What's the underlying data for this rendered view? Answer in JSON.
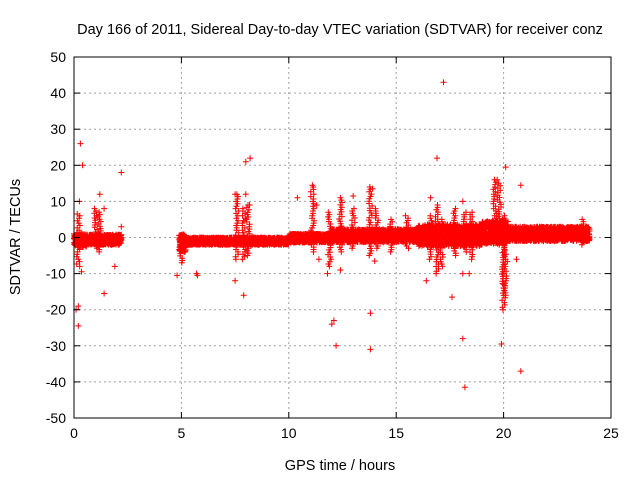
{
  "chart_data": {
    "type": "scatter",
    "title": "Day 166 of 2011, Sidereal Day-to-day VTEC variation (SDTVAR) for receiver conz",
    "xlabel": "GPS time / hours",
    "ylabel": "SDTVAR / TECUs",
    "xlim": [
      0,
      25
    ],
    "ylim": [
      -50,
      50
    ],
    "xticks": [
      0,
      5,
      10,
      15,
      20,
      25
    ],
    "yticks": [
      -50,
      -40,
      -30,
      -20,
      -10,
      0,
      10,
      20,
      30,
      40,
      50
    ],
    "grid": true,
    "marker": "+",
    "color": "#ff0000",
    "dense_band": {
      "description": "continuous band of points with gaps",
      "segments": [
        {
          "x": [
            0.0,
            0.6
          ],
          "y_center": -0.8,
          "half_width": 1.8
        },
        {
          "x": [
            0.6,
            2.2
          ],
          "y_center": -0.6,
          "half_width": 1.4
        },
        {
          "x": [
            4.9,
            5.2
          ],
          "y_center": -1.5,
          "half_width": 2.5
        },
        {
          "x": [
            5.2,
            10.0
          ],
          "y_center": -1.0,
          "half_width": 1.0
        },
        {
          "x": [
            10.0,
            12.0
          ],
          "y_center": -0.2,
          "half_width": 1.2
        },
        {
          "x": [
            12.0,
            16.0
          ],
          "y_center": 0.5,
          "half_width": 1.8
        },
        {
          "x": [
            16.0,
            19.0
          ],
          "y_center": 0.6,
          "half_width": 3.0
        },
        {
          "x": [
            19.0,
            20.2
          ],
          "y_center": 1.5,
          "half_width": 3.2
        },
        {
          "x": [
            20.2,
            24.0
          ],
          "y_center": 1.0,
          "half_width": 2.0
        }
      ]
    },
    "spikes": [
      {
        "x": 0.2,
        "y": [
          -8,
          6
        ]
      },
      {
        "x": 1.0,
        "y": [
          -3,
          8
        ]
      },
      {
        "x": 1.2,
        "y": [
          -4,
          7
        ]
      },
      {
        "x": 5.0,
        "y": [
          -7,
          0
        ]
      },
      {
        "x": 7.6,
        "y": [
          -6,
          12
        ]
      },
      {
        "x": 7.9,
        "y": [
          -6,
          8
        ]
      },
      {
        "x": 8.1,
        "y": [
          -5,
          9
        ]
      },
      {
        "x": 11.1,
        "y": [
          -4,
          14
        ]
      },
      {
        "x": 11.9,
        "y": [
          -8,
          7
        ]
      },
      {
        "x": 12.4,
        "y": [
          -4,
          11
        ]
      },
      {
        "x": 13.0,
        "y": [
          -3,
          8
        ]
      },
      {
        "x": 13.8,
        "y": [
          -5,
          14
        ]
      },
      {
        "x": 14.1,
        "y": [
          -3,
          8
        ]
      },
      {
        "x": 14.8,
        "y": [
          -4,
          5
        ]
      },
      {
        "x": 15.5,
        "y": [
          -3,
          6
        ]
      },
      {
        "x": 16.6,
        "y": [
          -6,
          6
        ]
      },
      {
        "x": 16.9,
        "y": [
          -10,
          9
        ]
      },
      {
        "x": 17.1,
        "y": [
          -8,
          5
        ]
      },
      {
        "x": 17.7,
        "y": [
          -5,
          8
        ]
      },
      {
        "x": 18.2,
        "y": [
          -4,
          7
        ]
      },
      {
        "x": 18.5,
        "y": [
          -6,
          7
        ]
      },
      {
        "x": 19.6,
        "y": [
          0,
          16
        ]
      },
      {
        "x": 19.8,
        "y": [
          -2,
          15
        ]
      },
      {
        "x": 20.0,
        "y": [
          -20,
          5
        ]
      },
      {
        "x": 20.1,
        "y": [
          -16,
          6
        ]
      },
      {
        "x": 23.7,
        "y": [
          -2,
          5
        ]
      }
    ],
    "outliers": [
      {
        "x": 0.3,
        "y": 26
      },
      {
        "x": 0.4,
        "y": 20
      },
      {
        "x": 0.25,
        "y": 10
      },
      {
        "x": 0.15,
        "y": 6.5
      },
      {
        "x": 0.2,
        "y": -19
      },
      {
        "x": 0.1,
        "y": -20
      },
      {
        "x": 0.2,
        "y": -24.5
      },
      {
        "x": 0.35,
        "y": -9.5
      },
      {
        "x": 1.2,
        "y": 12
      },
      {
        "x": 1.4,
        "y": 8
      },
      {
        "x": 1.4,
        "y": -15.5
      },
      {
        "x": 1.9,
        "y": -8
      },
      {
        "x": 2.2,
        "y": 18
      },
      {
        "x": 2.2,
        "y": 3
      },
      {
        "x": 4.8,
        "y": -10.5
      },
      {
        "x": 5.7,
        "y": -10
      },
      {
        "x": 5.75,
        "y": -10.5
      },
      {
        "x": 7.5,
        "y": 12
      },
      {
        "x": 7.5,
        "y": -12
      },
      {
        "x": 7.9,
        "y": -16
      },
      {
        "x": 8.0,
        "y": 21
      },
      {
        "x": 8.2,
        "y": 22
      },
      {
        "x": 8.0,
        "y": 12
      },
      {
        "x": 8.1,
        "y": 9
      },
      {
        "x": 10.4,
        "y": 11
      },
      {
        "x": 11.1,
        "y": 14.5
      },
      {
        "x": 11.3,
        "y": 9
      },
      {
        "x": 11.4,
        "y": -6
      },
      {
        "x": 11.8,
        "y": -10
      },
      {
        "x": 12.0,
        "y": -24
      },
      {
        "x": 12.1,
        "y": -23
      },
      {
        "x": 12.2,
        "y": -30
      },
      {
        "x": 12.4,
        "y": -9
      },
      {
        "x": 13.0,
        "y": 11.5
      },
      {
        "x": 13.8,
        "y": -21
      },
      {
        "x": 13.8,
        "y": -31
      },
      {
        "x": 14.0,
        "y": -6.5
      },
      {
        "x": 13.9,
        "y": 13.5
      },
      {
        "x": 16.4,
        "y": -12
      },
      {
        "x": 16.6,
        "y": 11
      },
      {
        "x": 16.9,
        "y": 22
      },
      {
        "x": 17.2,
        "y": 43
      },
      {
        "x": 17.6,
        "y": -16.5
      },
      {
        "x": 18.1,
        "y": -28
      },
      {
        "x": 18.2,
        "y": -41.5
      },
      {
        "x": 18.1,
        "y": -10
      },
      {
        "x": 18.1,
        "y": 10
      },
      {
        "x": 18.4,
        "y": -10
      },
      {
        "x": 19.7,
        "y": 16
      },
      {
        "x": 19.9,
        "y": -29.5
      },
      {
        "x": 20.1,
        "y": 19.5
      },
      {
        "x": 20.0,
        "y": -14
      },
      {
        "x": 20.0,
        "y": -13
      },
      {
        "x": 20.8,
        "y": -37
      },
      {
        "x": 20.8,
        "y": 14.5
      },
      {
        "x": 20.6,
        "y": -6
      }
    ]
  }
}
